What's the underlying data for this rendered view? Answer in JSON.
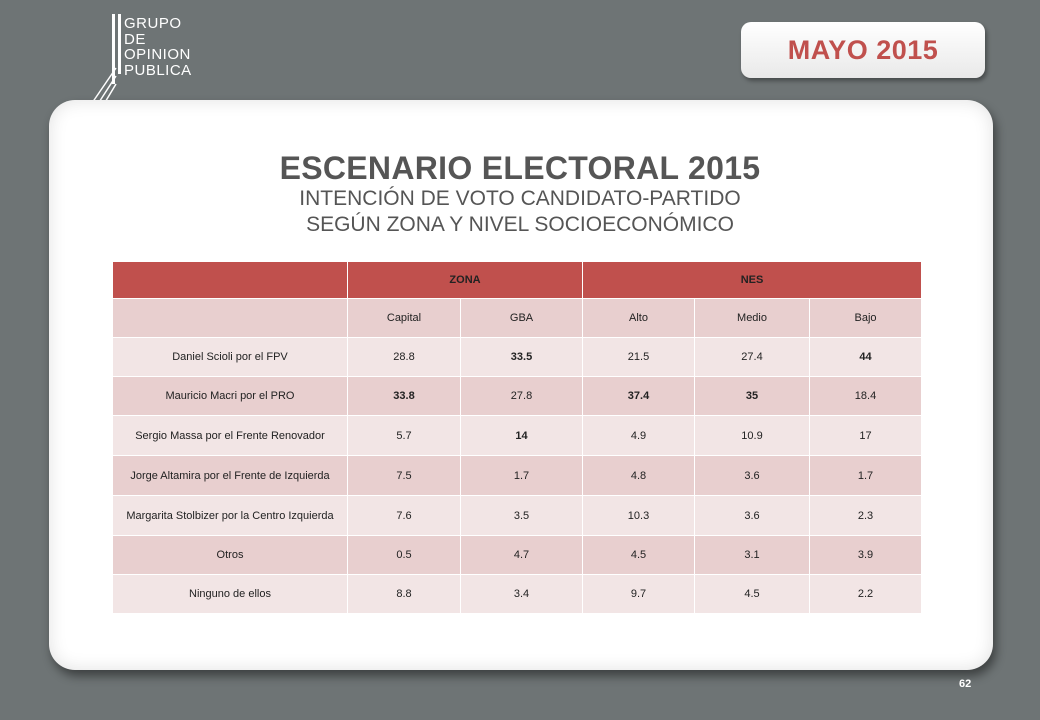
{
  "logo": {
    "lines": [
      "GRUPO",
      "DE",
      "OPINION",
      "PUBLICA"
    ]
  },
  "date_badge": "MAYO 2015",
  "title": "ESCENARIO ELECTORAL 2015",
  "subtitle_line1": "INTENCIÓN DE VOTO CANDIDATO-PARTIDO",
  "subtitle_line2": "SEGÚN ZONA Y NIVEL SOCIOECONÓMICO",
  "table": {
    "groups": [
      "ZONA",
      "NES"
    ],
    "columns": [
      "Capital",
      "GBA",
      "Alto",
      "Medio",
      "Bajo"
    ],
    "rows": [
      {
        "label": "Daniel Scioli por el FPV",
        "values": [
          "28.8",
          "33.5",
          "21.5",
          "27.4",
          "44"
        ]
      },
      {
        "label": "Mauricio Macri por el PRO",
        "values": [
          "33.8",
          "27.8",
          "37.4",
          "35",
          "18.4"
        ]
      },
      {
        "label": "Sergio Massa por el Frente Renovador",
        "values": [
          "5.7",
          "14",
          "4.9",
          "10.9",
          "17"
        ]
      },
      {
        "label": "Jorge Altamira por el Frente de Izquierda",
        "values": [
          "7.5",
          "1.7",
          "4.8",
          "3.6",
          "1.7"
        ]
      },
      {
        "label": "Margarita Stolbizer por la Centro Izquierda",
        "values": [
          "7.6",
          "3.5",
          "10.3",
          "3.6",
          "2.3"
        ]
      },
      {
        "label": "Otros",
        "values": [
          "0.5",
          "4.7",
          "4.5",
          "3.1",
          "3.9"
        ]
      },
      {
        "label": "Ninguno de ellos",
        "values": [
          "8.8",
          "3.4",
          "9.7",
          "4.5",
          "2.2"
        ]
      }
    ]
  },
  "page_number": "62",
  "colors": {
    "background": "#6e7475",
    "accent": "#c0504d",
    "row_light": "#f2e5e5",
    "row_dark": "#e8cfcf"
  }
}
